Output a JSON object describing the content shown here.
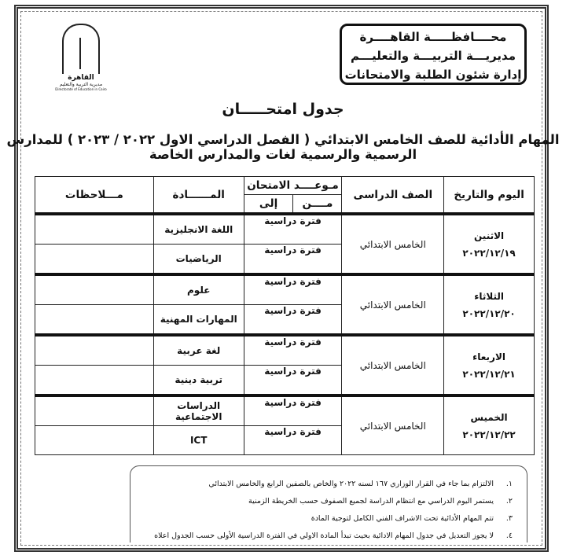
{
  "header": {
    "lines": [
      "محــــافظـــــة القاهــــرة",
      "مديريـــة التربيـــة والتعليـــم",
      "إدارة شئون الطلبة والامتحانات"
    ]
  },
  "logo": {
    "name": "القاهرة",
    "sub": "مديرية التربية والتعليم",
    "en": "Directorate of Education in Cairo"
  },
  "title": "جدول امتحـــــان",
  "subtitle": "المهام الأدائية للصف الخامس الابتدائي ( الفصل الدراسي الاول ٢٠٢٢ / ٢٠٢٣ ) للمدارس الرسمية والرسمية لغات والمدارس الخاصة",
  "table": {
    "headers": {
      "day_date": "اليوم والتاريخ",
      "grade": "الصف الدراسى",
      "exam_time": "مـوعــــد الامتحان",
      "from": "مــــن",
      "to": "إلى",
      "subject": "المــــــادة",
      "notes": "مـــلاحظات"
    },
    "groups": [
      {
        "day": "الاثنين",
        "date": "٢٠٢٢/١٢/١٩",
        "grade": "الخامس الابتدائي",
        "rows": [
          {
            "period": "فترة دراسية",
            "subject": "اللغة الانجليزية",
            "notes": ""
          },
          {
            "period": "فترة دراسية",
            "subject": "الرياضيات",
            "notes": ""
          }
        ]
      },
      {
        "day": "الثلاثاء",
        "date": "٢٠٢٢/١٢/٢٠",
        "grade": "الخامس الابتدائي",
        "rows": [
          {
            "period": "فترة دراسية",
            "subject": "علوم",
            "notes": ""
          },
          {
            "period": "فترة دراسية",
            "subject": "المهارات المهنية",
            "notes": ""
          }
        ]
      },
      {
        "day": "الاربعاء",
        "date": "٢٠٢٢/١٢/٢١",
        "grade": "الخامس الابتدائي",
        "rows": [
          {
            "period": "فترة دراسية",
            "subject": "لغة عربية",
            "notes": ""
          },
          {
            "period": "فترة دراسية",
            "subject": "تربية دينية",
            "notes": ""
          }
        ]
      },
      {
        "day": "الخميس",
        "date": "٢٠٢٢/١٢/٢٢",
        "grade": "الخامس الابتدائي",
        "rows": [
          {
            "period": "فترة دراسية",
            "subject": "الدراسات الاجتماعية",
            "notes": ""
          },
          {
            "period": "فترة دراسية",
            "subject": "ICT",
            "notes": ""
          }
        ]
      }
    ]
  },
  "notes": [
    {
      "num": "١.",
      "text": "الالتزام بما جاء في القرار الوزاري ١٦٧ لسنه ٢٠٢٢ والخاص بالصفين الرابع والخامس الابتدائي"
    },
    {
      "num": "٢.",
      "text": "يستمر اليوم الدراسي مع انتظام الدراسة لجميع الصفوف حسب الخريطة الزمنية"
    },
    {
      "num": "٣.",
      "text": "تتم المهام الأدائية تحت الاشراف الفني الكامل لتوجية المادة"
    },
    {
      "num": "٤.",
      "text": "لا يجوز التعديل في جدول المهام الادائية بحيث تبدأ المادة الاولي في الفترة الدراسية الأولى حسب الجدول اعلاه"
    }
  ]
}
